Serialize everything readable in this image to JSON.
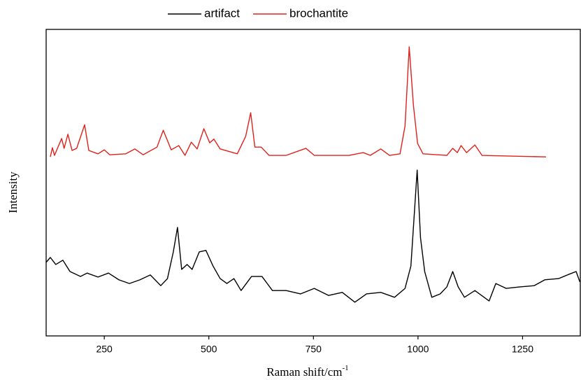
{
  "chart_data": {
    "type": "line",
    "x_label": "Raman shift/cm",
    "x_label_superscript": "-1",
    "y_label": "Intensity",
    "xlim": [
      111,
      1388
    ],
    "xticks": [
      250,
      500,
      750,
      1000,
      1250
    ],
    "ylim": [
      0,
      100
    ],
    "yticks": [],
    "grid": false,
    "legend": "top",
    "series": [
      {
        "name": "artifact",
        "color": "#000000",
        "x": [
          111,
          121,
          134,
          151,
          168,
          193,
          209,
          235,
          260,
          285,
          310,
          335,
          360,
          385,
          401,
          415,
          425,
          435,
          448,
          460,
          477,
          493,
          510,
          527,
          543,
          560,
          577,
          602,
          627,
          652,
          685,
          719,
          752,
          786,
          819,
          849,
          877,
          911,
          944,
          969,
          983,
          998,
          1006,
          1016,
          1033,
          1053,
          1069,
          1083,
          1096,
          1111,
          1136,
          1170,
          1186,
          1211,
          1244,
          1278,
          1303,
          1336,
          1361,
          1378,
          1387
        ],
        "values": [
          24.0,
          25.6,
          23.3,
          24.7,
          21.0,
          19.4,
          20.5,
          19.2,
          20.5,
          18.3,
          17.1,
          18.3,
          19.9,
          16.4,
          18.7,
          27.4,
          35.4,
          21.7,
          23.3,
          21.7,
          27.4,
          27.9,
          22.8,
          18.7,
          17.1,
          18.7,
          14.8,
          19.4,
          19.4,
          14.8,
          14.8,
          13.7,
          15.5,
          13.2,
          14.2,
          11.0,
          13.7,
          14.2,
          12.6,
          15.5,
          22.8,
          54.1,
          32.0,
          21.0,
          12.6,
          13.7,
          16.0,
          21.0,
          16.0,
          12.6,
          14.8,
          11.4,
          17.1,
          15.5,
          16.0,
          16.4,
          18.3,
          18.7,
          20.1,
          21.0,
          17.6
        ]
      },
      {
        "name": "brochantite",
        "color": "#e0201b",
        "x": [
          121,
          126,
          131,
          148,
          154,
          163,
          173,
          184,
          203,
          213,
          235,
          250,
          263,
          301,
          323,
          343,
          376,
          391,
          410,
          428,
          443,
          458,
          472,
          488,
          502,
          512,
          527,
          568,
          588,
          600,
          610,
          625,
          644,
          685,
          732,
          752,
          835,
          869,
          886,
          911,
          932,
          957,
          969,
          979,
          989,
          999,
          1012,
          1069,
          1083,
          1094,
          1103,
          1116,
          1136,
          1153,
          1306
        ],
        "values": [
          58.4,
          61.4,
          58.9,
          64.4,
          61.2,
          65.8,
          60.5,
          61.2,
          68.9,
          60.5,
          59.4,
          60.7,
          59.1,
          59.4,
          61.0,
          59.1,
          61.6,
          67.1,
          60.7,
          62.1,
          58.9,
          63.2,
          61.0,
          67.6,
          63.0,
          64.2,
          61.0,
          59.4,
          65.1,
          72.8,
          61.6,
          61.6,
          58.9,
          58.9,
          61.2,
          58.9,
          58.9,
          59.8,
          58.9,
          61.0,
          58.9,
          59.4,
          68.5,
          94.3,
          75.3,
          62.8,
          59.4,
          58.9,
          61.2,
          59.8,
          62.1,
          59.8,
          62.3,
          58.9,
          58.4
        ]
      }
    ]
  }
}
